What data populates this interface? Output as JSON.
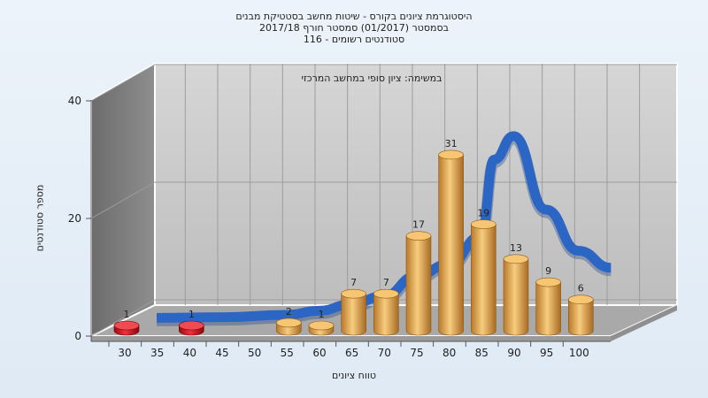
{
  "title": {
    "line1": "היסטוגרמת ציונים בקורס - שיטות מחשב בסטטיקת מבנים",
    "line2": "בסמסטר  (01/2017)  סמסטר חורף 2017/18",
    "line3": "סטודנטים רשומים - 116"
  },
  "chart_data": {
    "type": "bar",
    "title": "היסטוגרמת ציונים בקורס - שיטות מחשב בסטטיקת מבנים",
    "annotation": "במשימה: ציון סופי במחשב המרכזי",
    "xlabel": "טווח ציונים",
    "ylabel": "מספר סטודנטים",
    "ylim": [
      0,
      40
    ],
    "y_ticks": [
      0,
      20,
      40
    ],
    "x_ticks": [
      "30",
      "35",
      "40",
      "45",
      "50",
      "55",
      "60",
      "65",
      "70",
      "75",
      "80",
      "85",
      "90",
      "95",
      "100"
    ],
    "grid": true,
    "x": [
      30,
      40,
      55,
      60,
      65,
      70,
      75,
      80,
      85,
      90,
      95,
      100
    ],
    "values": [
      1,
      1,
      2,
      1,
      7,
      7,
      17,
      31,
      19,
      13,
      9,
      6
    ],
    "bar_colors": [
      "#d90f1a",
      "#d90f1a",
      "#e2a54a",
      "#e2a54a",
      "#e2a54a",
      "#e2a54a",
      "#e2a54a",
      "#e2a54a",
      "#e2a54a",
      "#e2a54a",
      "#e2a54a",
      "#e2a54a"
    ],
    "curve_x": [
      30,
      40,
      50,
      55,
      60,
      65,
      70,
      75,
      80,
      82,
      85,
      90,
      95,
      100
    ],
    "curve_y": [
      0.1,
      0.2,
      0.6,
      1.3,
      2.4,
      3.8,
      7.2,
      9.2,
      14.0,
      27.0,
      31.0,
      18.5,
      11.5,
      8.6
    ],
    "curve_color": "#2c66c4"
  }
}
